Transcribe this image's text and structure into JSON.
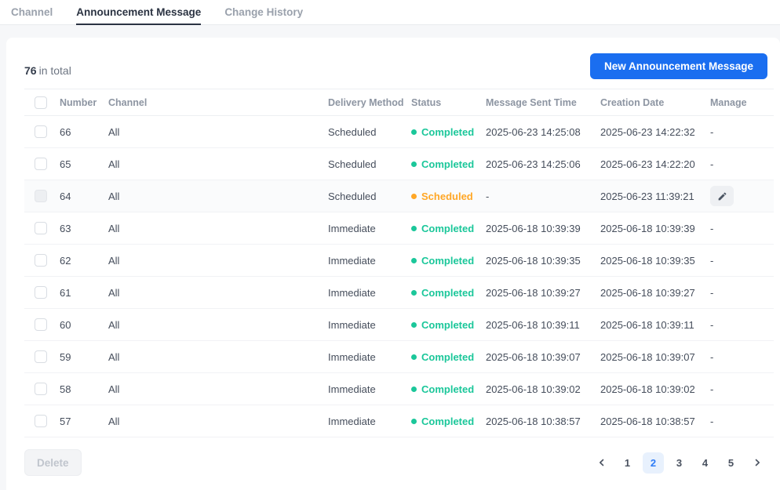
{
  "colors": {
    "accent": "#1a6ef0",
    "green": "#1bc79a",
    "orange": "#ffa726",
    "dark": "#2b3342",
    "page-active-bg": "#e8f1fd",
    "page-active-text": "#2e7cf6"
  },
  "tabs": [
    {
      "label": "Channel",
      "active": false
    },
    {
      "label": "Announcement Message",
      "active": true
    },
    {
      "label": "Change History",
      "active": false
    }
  ],
  "toolbar": {
    "total_count": "76",
    "total_suffix": "in total",
    "new_button_label": "New Announcement Message"
  },
  "table": {
    "columns": [
      "Number",
      "Channel",
      "Delivery Method",
      "Status",
      "Message Sent Time",
      "Creation Date",
      "Manage"
    ],
    "rows": [
      {
        "number": "66",
        "channel": "All",
        "delivery_method": "Scheduled",
        "status": "Completed",
        "status_type": "completed",
        "sent_time": "2025-06-23 14:25:08",
        "creation_date": "2025-06-23 14:22:32",
        "manage": "-",
        "highlighted": false
      },
      {
        "number": "65",
        "channel": "All",
        "delivery_method": "Scheduled",
        "status": "Completed",
        "status_type": "completed",
        "sent_time": "2025-06-23 14:25:06",
        "creation_date": "2025-06-23 14:22:20",
        "manage": "-",
        "highlighted": false
      },
      {
        "number": "64",
        "channel": "All",
        "delivery_method": "Scheduled",
        "status": "Scheduled",
        "status_type": "scheduled",
        "sent_time": "-",
        "creation_date": "2025-06-23 11:39:21",
        "manage": "edit",
        "highlighted": true
      },
      {
        "number": "63",
        "channel": "All",
        "delivery_method": "Immediate",
        "status": "Completed",
        "status_type": "completed",
        "sent_time": "2025-06-18 10:39:39",
        "creation_date": "2025-06-18 10:39:39",
        "manage": "-",
        "highlighted": false
      },
      {
        "number": "62",
        "channel": "All",
        "delivery_method": "Immediate",
        "status": "Completed",
        "status_type": "completed",
        "sent_time": "2025-06-18 10:39:35",
        "creation_date": "2025-06-18 10:39:35",
        "manage": "-",
        "highlighted": false
      },
      {
        "number": "61",
        "channel": "All",
        "delivery_method": "Immediate",
        "status": "Completed",
        "status_type": "completed",
        "sent_time": "2025-06-18 10:39:27",
        "creation_date": "2025-06-18 10:39:27",
        "manage": "-",
        "highlighted": false
      },
      {
        "number": "60",
        "channel": "All",
        "delivery_method": "Immediate",
        "status": "Completed",
        "status_type": "completed",
        "sent_time": "2025-06-18 10:39:11",
        "creation_date": "2025-06-18 10:39:11",
        "manage": "-",
        "highlighted": false
      },
      {
        "number": "59",
        "channel": "All",
        "delivery_method": "Immediate",
        "status": "Completed",
        "status_type": "completed",
        "sent_time": "2025-06-18 10:39:07",
        "creation_date": "2025-06-18 10:39:07",
        "manage": "-",
        "highlighted": false
      },
      {
        "number": "58",
        "channel": "All",
        "delivery_method": "Immediate",
        "status": "Completed",
        "status_type": "completed",
        "sent_time": "2025-06-18 10:39:02",
        "creation_date": "2025-06-18 10:39:02",
        "manage": "-",
        "highlighted": false
      },
      {
        "number": "57",
        "channel": "All",
        "delivery_method": "Immediate",
        "status": "Completed",
        "status_type": "completed",
        "sent_time": "2025-06-18 10:38:57",
        "creation_date": "2025-06-18 10:38:57",
        "manage": "-",
        "highlighted": false
      }
    ]
  },
  "footer": {
    "delete_label": "Delete",
    "pagination": {
      "pages": [
        "1",
        "2",
        "3",
        "4",
        "5"
      ],
      "active_page": "2"
    }
  }
}
